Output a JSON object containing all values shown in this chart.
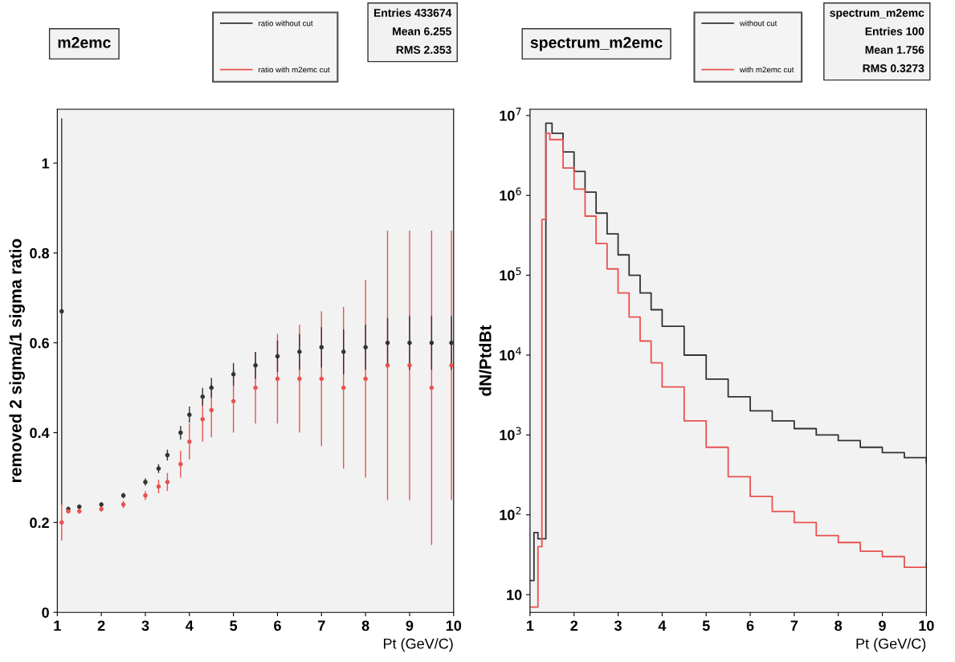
{
  "chart_data": [
    {
      "type": "scatter",
      "title": "m2emc",
      "xlabel": "Pt (GeV/C)",
      "ylabel": "removed 2 sigma/1 sigma ratio",
      "xlim": [
        1,
        10
      ],
      "ylim": [
        0,
        1.12
      ],
      "xticks": [
        1,
        2,
        3,
        4,
        5,
        6,
        7,
        8,
        9,
        10
      ],
      "yticks": [
        0,
        0.2,
        0.4,
        0.6,
        0.8,
        1
      ],
      "grid": false,
      "legend": "top",
      "marker": "circle",
      "annotations": [
        "Entries 433674",
        "Mean 6.255",
        "RMS 2.353"
      ],
      "series": [
        {
          "name": "ratio without cut",
          "color": "#333333",
          "x": [
            1.1,
            1.25,
            1.5,
            2,
            2.5,
            3,
            3.3,
            3.5,
            3.8,
            4,
            4.3,
            4.5,
            5,
            5.5,
            6,
            6.5,
            7,
            7.5,
            8,
            8.5,
            9,
            9.5,
            9.95
          ],
          "values": [
            0.67,
            0.23,
            0.235,
            0.24,
            0.26,
            0.29,
            0.32,
            0.35,
            0.4,
            0.44,
            0.48,
            0.5,
            0.53,
            0.55,
            0.57,
            0.58,
            0.59,
            0.58,
            0.59,
            0.6,
            0.6,
            0.6,
            0.6
          ],
          "errors": [
            0.43,
            0.005,
            0.005,
            0.005,
            0.006,
            0.008,
            0.01,
            0.012,
            0.015,
            0.018,
            0.02,
            0.022,
            0.025,
            0.03,
            0.035,
            0.04,
            0.045,
            0.05,
            0.05,
            0.055,
            0.06,
            0.06,
            0.06
          ]
        },
        {
          "name": "ratio with m2emc cut",
          "color": "#e8524f",
          "x": [
            1.1,
            1.25,
            1.5,
            2,
            2.5,
            3,
            3.3,
            3.5,
            3.8,
            4,
            4.3,
            4.5,
            5,
            5.5,
            6,
            6.5,
            7,
            7.5,
            8,
            8.5,
            9,
            9.5,
            9.95
          ],
          "values": [
            0.2,
            0.225,
            0.225,
            0.23,
            0.24,
            0.26,
            0.28,
            0.29,
            0.33,
            0.38,
            0.43,
            0.45,
            0.47,
            0.5,
            0.52,
            0.52,
            0.52,
            0.5,
            0.52,
            0.55,
            0.55,
            0.5,
            0.55
          ],
          "errors": [
            0.04,
            0.005,
            0.005,
            0.006,
            0.008,
            0.01,
            0.015,
            0.02,
            0.03,
            0.04,
            0.05,
            0.06,
            0.07,
            0.08,
            0.1,
            0.12,
            0.15,
            0.18,
            0.22,
            0.3,
            0.3,
            0.35,
            0.3
          ]
        }
      ]
    },
    {
      "type": "step",
      "title": "spectrum_m2emc",
      "xlabel": "Pt (GeV/C)",
      "ylabel": "dN/PtdBt",
      "log": "y",
      "xlim": [
        1,
        10
      ],
      "ylim": [
        6,
        12000000.0
      ],
      "xticks": [
        1,
        2,
        3,
        4,
        5,
        6,
        7,
        8,
        9,
        10
      ],
      "yticks": [
        {
          "value": 10,
          "label": "10"
        },
        {
          "value": 100,
          "label": "10$^{2}$"
        },
        {
          "value": 1000,
          "label": "10$^{3}$"
        },
        {
          "value": 10000,
          "label": "10$^{4}$"
        },
        {
          "value": 100000,
          "label": "10$^{5}$"
        },
        {
          "value": 1000000,
          "label": "10$^{6}$"
        },
        {
          "value": 10000000,
          "label": "10$^{7}$"
        }
      ],
      "grid": false,
      "legend": "top",
      "annotations": [
        "spectrum_m2emc",
        "Entries 100",
        "Mean 1.756",
        "RMS 0.3273"
      ],
      "series": [
        {
          "name": "without cut",
          "color": "#333333",
          "x": [
            1.0,
            1.09,
            1.18,
            1.27,
            1.36,
            1.5,
            1.75,
            2,
            2.25,
            2.5,
            2.75,
            3,
            3.25,
            3.5,
            3.75,
            4,
            4.5,
            5,
            5.5,
            6,
            6.5,
            7,
            7.5,
            8,
            8.5,
            9,
            9.5,
            10
          ],
          "values": [
            15,
            60,
            50,
            50,
            8000000,
            6000000,
            3500000,
            2000000,
            1100000,
            600000,
            330000,
            180000,
            100000,
            60000,
            37000,
            23000,
            10000,
            5000,
            3000,
            2000,
            1500,
            1200,
            1000,
            850,
            700,
            600,
            520,
            450
          ]
        },
        {
          "name": "with m2emc cut",
          "color": "#e8524f",
          "x": [
            1.0,
            1.09,
            1.18,
            1.27,
            1.36,
            1.45,
            1.75,
            2,
            2.25,
            2.5,
            2.75,
            3,
            3.25,
            3.5,
            3.75,
            4,
            4.5,
            5,
            5.5,
            6,
            6.5,
            7,
            7.5,
            8,
            8.5,
            9,
            9.5,
            10
          ],
          "values": [
            7,
            7,
            40,
            500000,
            6000000,
            5000000,
            2200000,
            1200000,
            550000,
            250000,
            120000,
            60000,
            30000,
            15000,
            8000,
            4000,
            1500,
            700,
            300,
            170,
            110,
            80,
            55,
            45,
            35,
            30,
            22,
            25
          ]
        }
      ]
    }
  ]
}
